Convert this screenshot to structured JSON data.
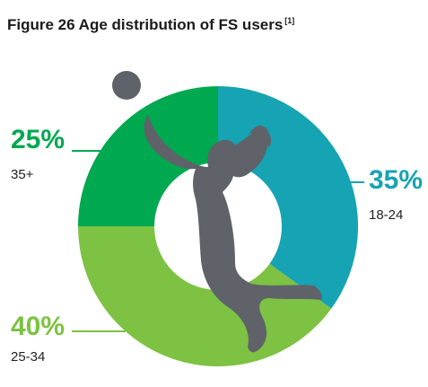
{
  "title": "Figure 26 Age distribution of FS users",
  "title_note": "[1]",
  "chart_data": {
    "type": "pie",
    "variant": "donut",
    "title": "Figure 26 Age distribution of FS users",
    "categories": [
      "18-24",
      "25-34",
      "35+"
    ],
    "values": [
      35,
      40,
      25
    ],
    "value_labels": [
      "35%",
      "40%",
      "25%"
    ],
    "colors": [
      "#16a3b3",
      "#7dc242",
      "#00a850"
    ],
    "legend": "none"
  },
  "colors": {
    "silhouette": "#5f6369",
    "text": "#1a1a1a"
  }
}
